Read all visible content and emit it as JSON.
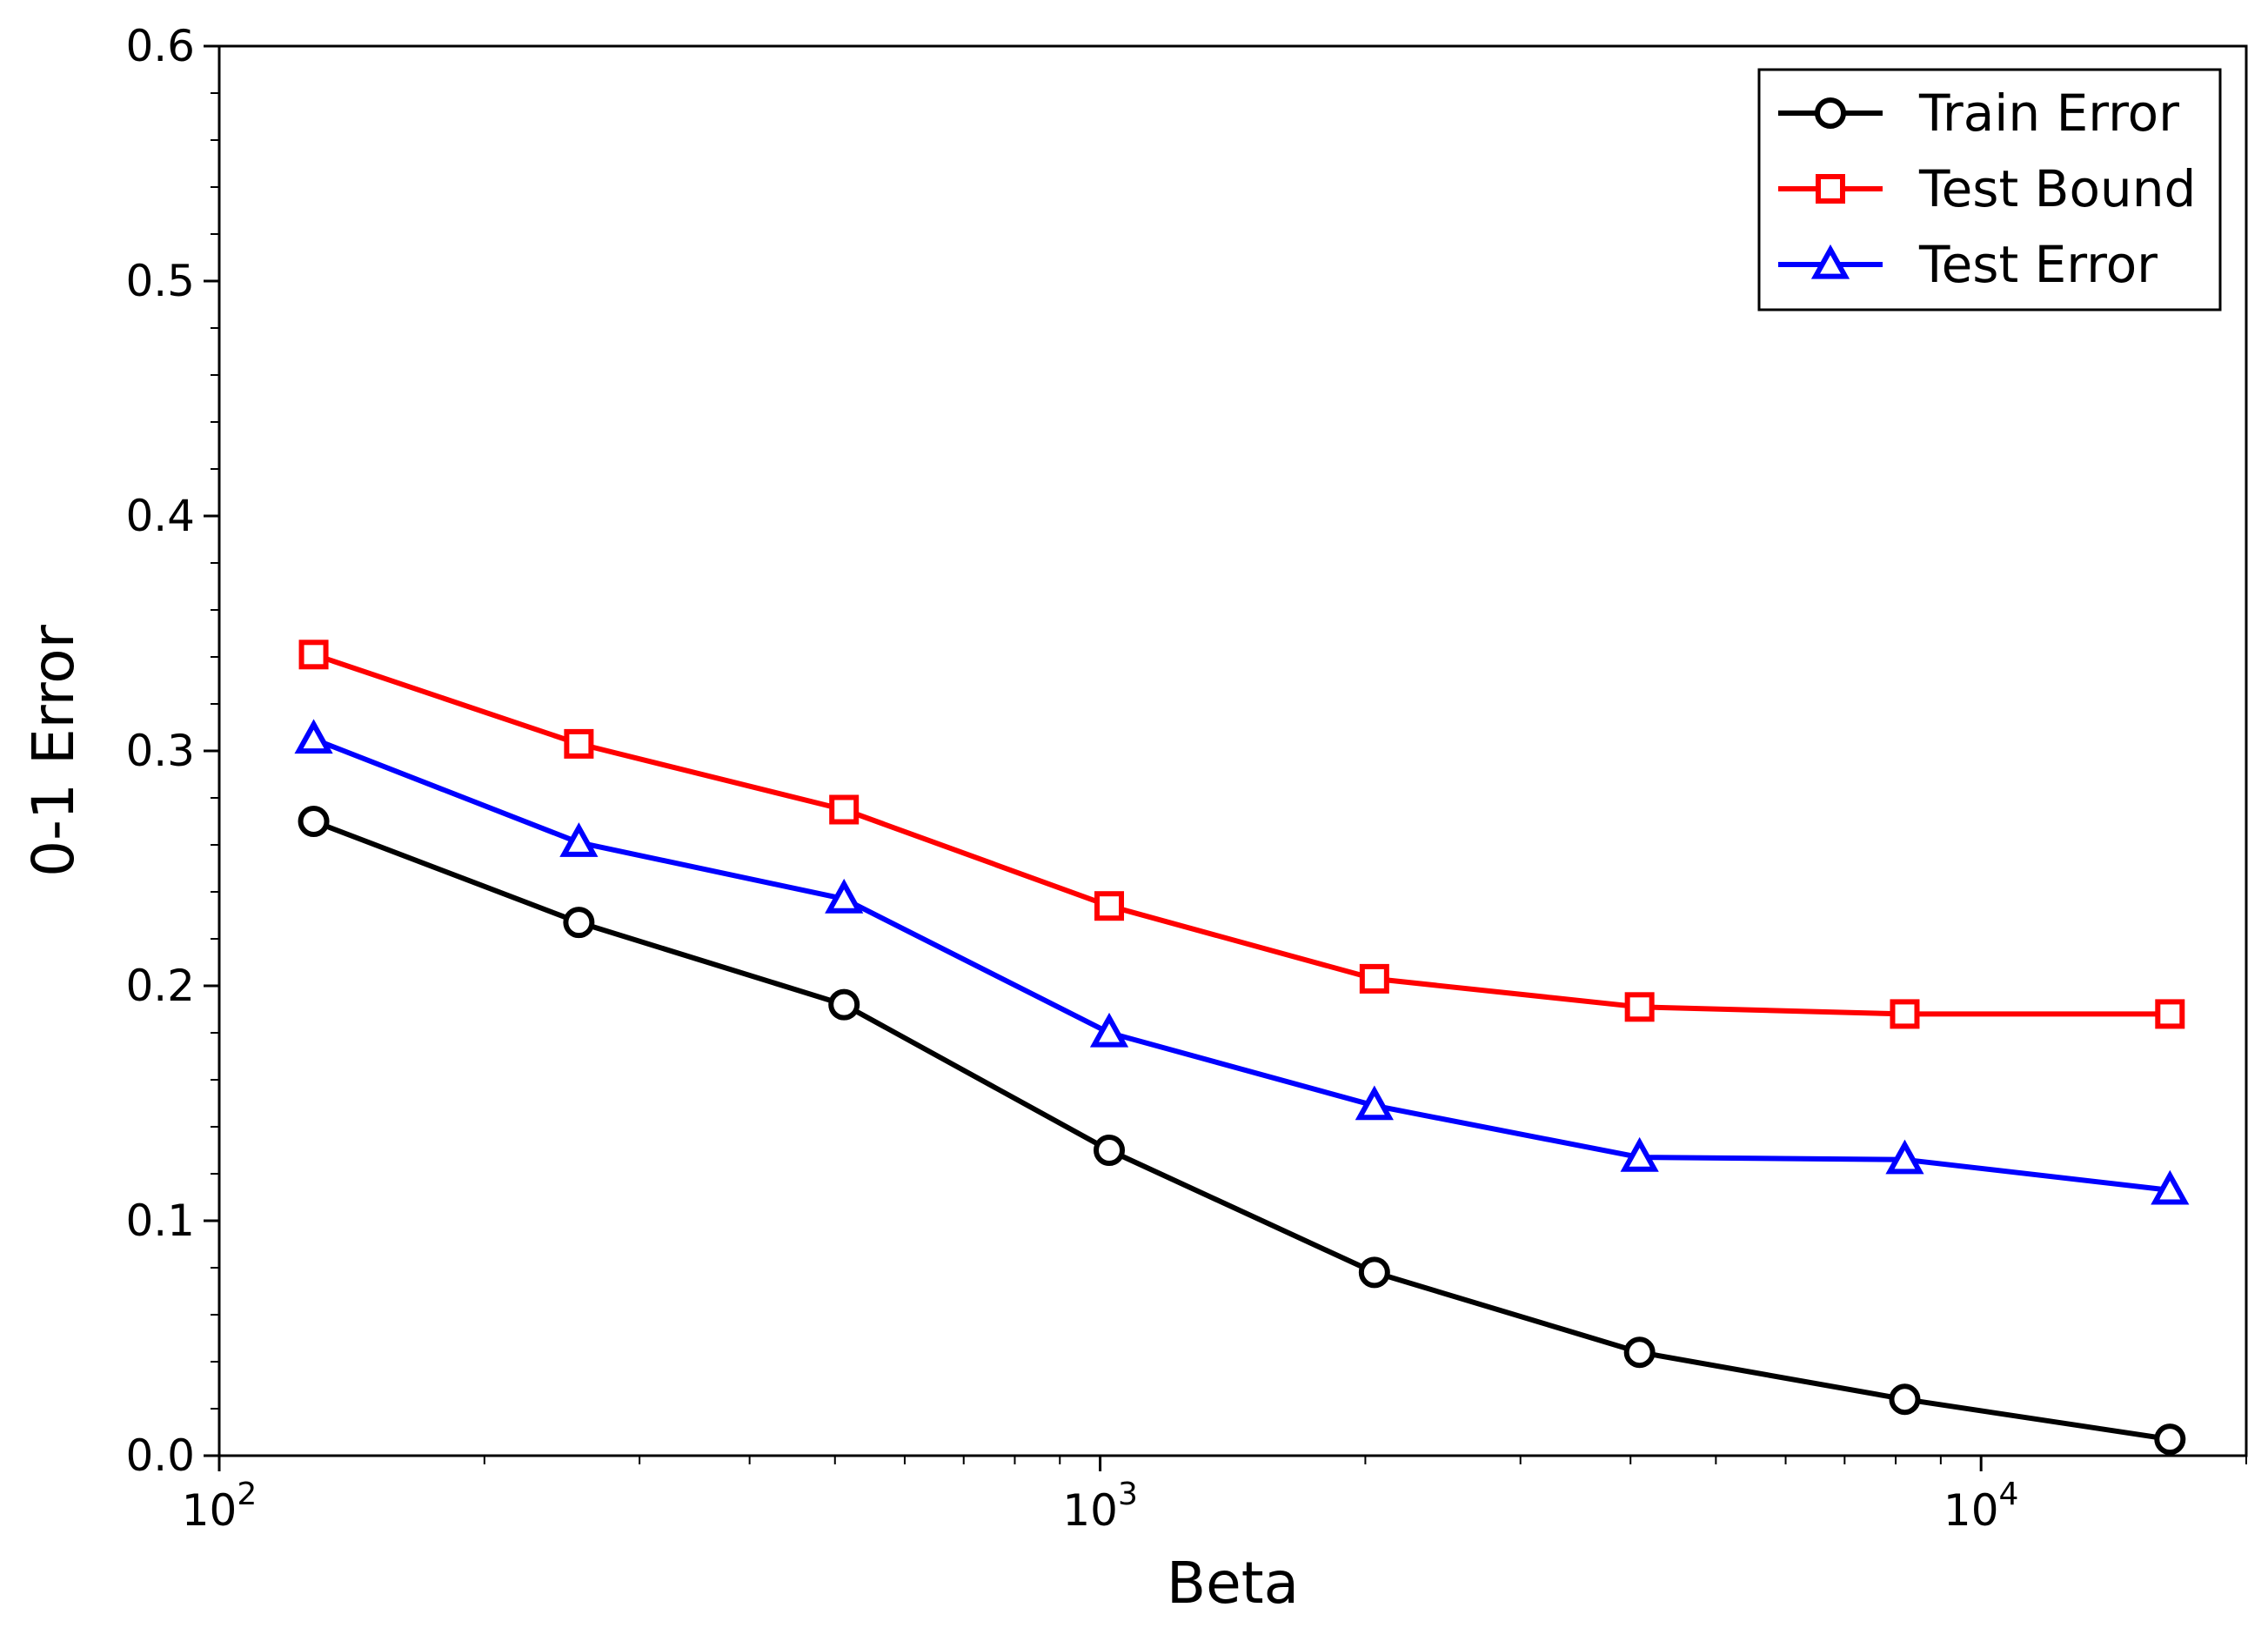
{
  "chart_data": {
    "type": "line",
    "title": "",
    "xlabel": "Beta",
    "ylabel": "0-1 Error",
    "xscale": "log",
    "xlim": [
      100,
      20000
    ],
    "ylim": [
      0.0,
      0.6
    ],
    "x": [
      128,
      256,
      512,
      1024,
      2048,
      4096,
      8192,
      16384
    ],
    "x_ticks": [
      {
        "value": 100,
        "base": "10",
        "exp": "2"
      },
      {
        "value": 1000,
        "base": "10",
        "exp": "3"
      },
      {
        "value": 10000,
        "base": "10",
        "exp": "4"
      }
    ],
    "y_ticks": [
      "0.0",
      "0.1",
      "0.2",
      "0.3",
      "0.4",
      "0.5",
      "0.6"
    ],
    "legend_position": "top-right",
    "grid": false,
    "series": [
      {
        "name": "Train Error",
        "color": "#000000",
        "marker": "circle",
        "values": [
          0.27,
          0.227,
          0.192,
          0.13,
          0.078,
          0.044,
          0.024,
          0.007
        ]
      },
      {
        "name": "Test Bound",
        "color": "#ff0000",
        "marker": "square",
        "values": [
          0.341,
          0.303,
          0.275,
          0.234,
          0.203,
          0.191,
          0.188,
          0.188
        ]
      },
      {
        "name": "Test Error",
        "color": "#0000ff",
        "marker": "triangle",
        "values": [
          0.305,
          0.261,
          0.237,
          0.18,
          0.149,
          0.127,
          0.126,
          0.113
        ]
      }
    ]
  }
}
